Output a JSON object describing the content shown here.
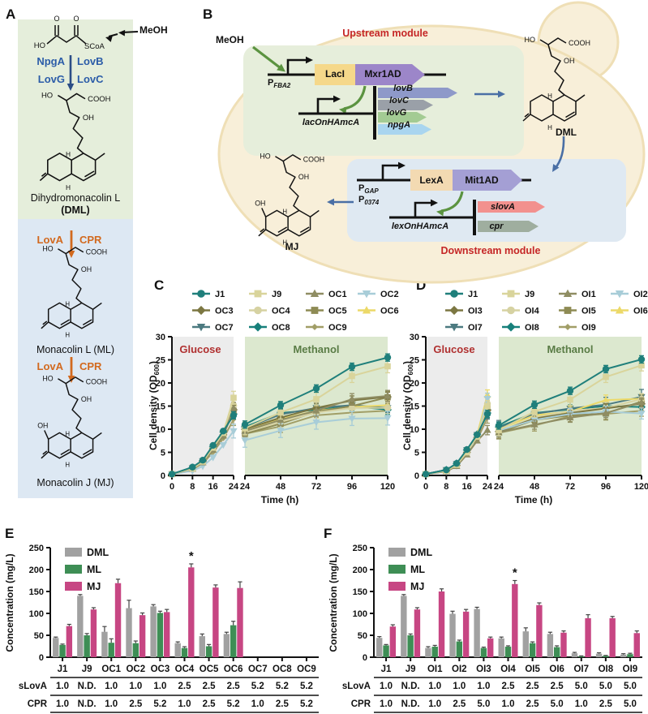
{
  "figure": {
    "letters": {
      "A": "A",
      "B": "B",
      "C": "C",
      "D": "D",
      "E": "E",
      "F": "F"
    }
  },
  "colors": {
    "greenbox": "#e5eedb",
    "bluebox": "#dde8f3",
    "blue_enzyme": "#2b5ca8",
    "blue_arrow_dark": "#2b4d86",
    "orange_enzyme": "#d2691e",
    "cell_fill": "#f8efd9",
    "cell_stroke": "#efdfb6",
    "upbox": "#e6eedb",
    "downbox": "#dfe9f2",
    "module_title": "#c52626",
    "laci": "#f5d88a",
    "mxr1ad": "#9c86c9",
    "lexa": "#f3dab2",
    "mit1ad": "#a49fd4",
    "lovB": "#8e99c9",
    "lovC": "#9aa0a8",
    "lovG": "#a3cb93",
    "npgA": "#a9d5ef",
    "slovA": "#f2918e",
    "cpr_gene": "#9fae9f",
    "green_arrow": "#5b9340",
    "blue_arrow": "#4a6fa5",
    "glucose_bg": "#ececec",
    "methanol_bg": "#dce8cf",
    "glucose_text": "#b03030",
    "methanol_text": "#5a7c46",
    "bar_dml": "#a1a1a1",
    "bar_ml": "#3e8e55",
    "bar_mj": "#c74683"
  },
  "panelA": {
    "meoh": "MeOH",
    "labels": {
      "ho": "HO",
      "o": "O",
      "scoa": "SCoA",
      "cooh": "COOH",
      "oh": "OH",
      "h": "H"
    },
    "enzymes": {
      "npga": "NpgA",
      "lovb": "LovB",
      "lovg": "LovG",
      "lovc": "LovC"
    },
    "dml_name": "Dihydromonacolin L",
    "dml_abbr": "(DML)",
    "step1": {
      "left": "LovA",
      "right": "CPR"
    },
    "ml_name": "Monacolin L (ML)",
    "step2": {
      "left": "LovA",
      "right": "CPR"
    },
    "mj_name": "Monacolin J (MJ)"
  },
  "panelB": {
    "meoh": "MeOH",
    "upstream_title": "Upstream module",
    "downstream_title": "Downstream module",
    "p_fba2": {
      "base": "P",
      "sub": "FBA2"
    },
    "laci": "LacI",
    "mxr1ad": "Mxr1AD",
    "lacOn": "lacOnHAmcA",
    "genes_up": [
      {
        "name": "lovB"
      },
      {
        "name": "lovC"
      },
      {
        "name": "lovG"
      },
      {
        "name": "npgA"
      }
    ],
    "dml": "DML",
    "p_gap": {
      "base": "P",
      "sub": "GAP"
    },
    "p_0374": {
      "base": "P",
      "sub": "0374"
    },
    "lexa": "LexA",
    "mit1ad": "Mit1AD",
    "lexOn": "lexOnHAmcA",
    "genes_down": [
      {
        "name": "slovA"
      },
      {
        "name": "cpr"
      }
    ],
    "mj": "MJ",
    "labels": {
      "ho": "HO",
      "cooh": "COOH",
      "oh": "OH",
      "h": "H"
    }
  },
  "chart_data": [
    {
      "id": "C",
      "type": "line",
      "ylabel_pre": "Cell density (OD",
      "ylabel_sub": "600",
      "ylabel_post": ")",
      "xlabel": "Time (h)",
      "ylim": [
        0,
        30
      ],
      "yticks": [
        0,
        5,
        10,
        15,
        20,
        25,
        30
      ],
      "phase1": {
        "label": "Glucose",
        "x": [
          0,
          8,
          12,
          16,
          20,
          24
        ],
        "xticks": [
          0,
          8,
          16,
          24
        ]
      },
      "phase2": {
        "label": "Methanol",
        "x": [
          24,
          48,
          72,
          96,
          120
        ],
        "xticks": [
          24,
          48,
          72,
          96,
          120
        ]
      },
      "legend_rows": [
        [
          "J1",
          "J9",
          "OC1",
          "OC2"
        ],
        [
          "OC3",
          "OC4",
          "OC5",
          "OC6"
        ],
        [
          "OC7",
          "OC8",
          "OC9"
        ]
      ],
      "series": [
        {
          "name": "J1",
          "color": "#1f7f7b",
          "marker": "circle",
          "err": 0.8,
          "g": [
            0.3,
            1.8,
            3.3,
            6.5,
            9.6,
            13.0
          ],
          "m": [
            11.0,
            15.2,
            18.8,
            23.5,
            25.5
          ]
        },
        {
          "name": "J9",
          "color": "#d9d49b",
          "marker": "square",
          "err": 1.4,
          "g": [
            0.3,
            1.5,
            3.0,
            6.0,
            9.2,
            16.8
          ],
          "m": [
            10.2,
            13.6,
            16.5,
            21.5,
            23.6
          ]
        },
        {
          "name": "OC1",
          "color": "#8f8d63",
          "marker": "triangle-up",
          "err": 1.2,
          "g": [
            0.3,
            1.4,
            2.8,
            5.5,
            8.6,
            14.6
          ],
          "m": [
            9.6,
            12.0,
            14.0,
            16.5,
            17.2
          ]
        },
        {
          "name": "OC2",
          "color": "#a8cdd8",
          "marker": "triangle-down",
          "err": 1.5,
          "g": [
            0.3,
            1.0,
            2.0,
            3.9,
            6.6,
            9.6
          ],
          "m": [
            7.6,
            9.7,
            11.5,
            12.3,
            12.4
          ]
        },
        {
          "name": "OC3",
          "color": "#7c7742",
          "marker": "diamond",
          "err": 1.0,
          "g": [
            0.3,
            1.5,
            3.0,
            5.8,
            8.8,
            14.2
          ],
          "m": [
            10.0,
            12.5,
            14.6,
            16.2,
            17.0
          ]
        },
        {
          "name": "OC4",
          "color": "#d6d2a2",
          "marker": "circle",
          "err": 1.2,
          "g": [
            0.3,
            1.4,
            2.8,
            5.6,
            8.8,
            15.2
          ],
          "m": [
            9.4,
            11.6,
            13.6,
            14.6,
            14.6
          ]
        },
        {
          "name": "OC5",
          "color": "#8e8b54",
          "marker": "square",
          "err": 1.3,
          "g": [
            0.3,
            1.5,
            2.9,
            5.6,
            8.7,
            14.0
          ],
          "m": [
            9.0,
            11.2,
            13.8,
            15.0,
            16.9
          ]
        },
        {
          "name": "OC6",
          "color": "#ecd968",
          "marker": "triangle-up",
          "err": 1.1,
          "g": [
            0.3,
            1.5,
            3.0,
            5.9,
            9.0,
            15.6
          ],
          "m": [
            10.0,
            12.2,
            14.0,
            14.8,
            15.2
          ]
        },
        {
          "name": "OC7",
          "color": "#4c7a80",
          "marker": "triangle-down",
          "err": 1.0,
          "g": [
            0.3,
            1.6,
            3.1,
            6.0,
            9.2,
            13.6
          ],
          "m": [
            10.2,
            13.2,
            14.6,
            15.2,
            14.6
          ]
        },
        {
          "name": "OC8",
          "color": "#17807b",
          "marker": "diamond",
          "err": 1.0,
          "g": [
            0.3,
            1.7,
            3.2,
            6.2,
            9.4,
            13.3
          ],
          "m": [
            10.5,
            13.5,
            14.2,
            15.0,
            14.2
          ]
        },
        {
          "name": "OC9",
          "color": "#a19e67",
          "marker": "diamond-small",
          "err": 1.3,
          "g": [
            0.3,
            1.3,
            2.6,
            5.0,
            8.0,
            12.1
          ],
          "m": [
            9.0,
            10.6,
            13.0,
            13.6,
            14.0
          ]
        }
      ]
    },
    {
      "id": "D",
      "type": "line",
      "ylabel_pre": "Cell density (OD",
      "ylabel_sub": "600",
      "ylabel_post": ")",
      "xlabel": "Time (h)",
      "ylim": [
        0,
        30
      ],
      "yticks": [
        0,
        5,
        10,
        15,
        20,
        25,
        30
      ],
      "phase1": {
        "label": "Glucose",
        "x": [
          0,
          8,
          12,
          16,
          20,
          24
        ],
        "xticks": [
          0,
          8,
          16,
          24
        ]
      },
      "phase2": {
        "label": "Methanol",
        "x": [
          24,
          48,
          72,
          96,
          120
        ],
        "xticks": [
          24,
          48,
          72,
          96,
          120
        ]
      },
      "legend_rows": [
        [
          "J1",
          "J9",
          "OI1",
          "OI2"
        ],
        [
          "OI3",
          "OI4",
          "OI5",
          "OI6"
        ],
        [
          "OI7",
          "OI8",
          "OI9"
        ]
      ],
      "series": [
        {
          "name": "J1",
          "color": "#1f7f7b",
          "marker": "circle",
          "err": 0.8,
          "g": [
            0.3,
            1.2,
            2.6,
            5.6,
            8.8,
            13.3
          ],
          "m": [
            10.8,
            15.3,
            18.3,
            23.0,
            25.1
          ]
        },
        {
          "name": "J9",
          "color": "#d9d49b",
          "marker": "square",
          "err": 1.2,
          "g": [
            0.3,
            1.0,
            2.3,
            5.0,
            8.4,
            15.0
          ],
          "m": [
            9.8,
            13.8,
            16.4,
            21.3,
            23.8
          ]
        },
        {
          "name": "OI1",
          "color": "#8f8d63",
          "marker": "triangle-up",
          "err": 1.0,
          "g": [
            0.3,
            0.9,
            2.0,
            4.5,
            7.5,
            9.8
          ],
          "m": [
            9.3,
            11.0,
            12.5,
            13.5,
            15.8
          ]
        },
        {
          "name": "OI2",
          "color": "#a8cdd8",
          "marker": "triangle-down",
          "err": 1.2,
          "g": [
            0.3,
            0.9,
            2.1,
            4.8,
            8.0,
            16.6
          ],
          "m": [
            9.7,
            12.0,
            13.3,
            13.8,
            13.4
          ]
        },
        {
          "name": "OI3",
          "color": "#7c7742",
          "marker": "diamond",
          "err": 1.0,
          "g": [
            0.3,
            1.0,
            2.2,
            5.0,
            8.2,
            14.1
          ],
          "m": [
            9.5,
            12.3,
            13.5,
            14.5,
            15.5
          ]
        },
        {
          "name": "OI4",
          "color": "#d6d2a2",
          "marker": "circle",
          "err": 1.2,
          "g": [
            0.3,
            1.0,
            2.2,
            5.0,
            8.5,
            15.5
          ],
          "m": [
            9.5,
            12.5,
            14.0,
            14.6,
            16.5
          ]
        },
        {
          "name": "OI5",
          "color": "#8e8b54",
          "marker": "square",
          "err": 1.4,
          "g": [
            0.3,
            1.0,
            2.3,
            5.2,
            8.5,
            14.5
          ],
          "m": [
            9.3,
            12.0,
            13.0,
            13.4,
            16.0
          ]
        },
        {
          "name": "OI6",
          "color": "#ecd968",
          "marker": "triangle-up",
          "err": 1.1,
          "g": [
            0.3,
            1.1,
            2.4,
            5.4,
            8.8,
            17.4
          ],
          "m": [
            10.0,
            13.0,
            13.8,
            16.3,
            16.6
          ]
        },
        {
          "name": "OI7",
          "color": "#4c7a80",
          "marker": "triangle-down",
          "err": 1.6,
          "g": [
            0.3,
            1.2,
            2.5,
            5.5,
            8.8,
            13.8
          ],
          "m": [
            10.3,
            13.3,
            14.5,
            15.3,
            17.0
          ]
        },
        {
          "name": "OI8",
          "color": "#17807b",
          "marker": "diamond",
          "err": 1.0,
          "g": [
            0.3,
            1.2,
            2.6,
            5.5,
            8.9,
            13.5
          ],
          "m": [
            10.5,
            13.5,
            14.3,
            15.0,
            14.8
          ]
        },
        {
          "name": "OI9",
          "color": "#a19e67",
          "marker": "diamond-small",
          "err": 1.2,
          "g": [
            0.3,
            0.9,
            2.0,
            4.6,
            7.7,
            12.5
          ],
          "m": [
            9.2,
            10.8,
            12.8,
            13.3,
            14.0
          ]
        }
      ]
    },
    {
      "id": "E",
      "type": "bar",
      "ylabel": "Concentration (mg/L)",
      "ylim": [
        0,
        250
      ],
      "yticks": [
        0,
        50,
        100,
        150,
        200,
        250
      ],
      "categories": [
        "J1",
        "J9",
        "OC1",
        "OC2",
        "OC3",
        "OC4",
        "OC5",
        "OC6",
        "OC7",
        "OC8",
        "OC9"
      ],
      "series": [
        {
          "name": "DML",
          "color": "#a1a1a1",
          "values": [
            44,
            140,
            58,
            112,
            116,
            32,
            48,
            53,
            0,
            0,
            0
          ],
          "errors": [
            2,
            3,
            12,
            18,
            4,
            3,
            5,
            4,
            0,
            0,
            0
          ]
        },
        {
          "name": "ML",
          "color": "#3e8e55",
          "values": [
            28,
            50,
            33,
            32,
            101,
            21,
            25,
            73,
            0,
            0,
            0
          ],
          "errors": [
            2,
            4,
            9,
            5,
            4,
            3,
            4,
            9,
            0,
            0,
            0
          ]
        },
        {
          "name": "MJ",
          "color": "#c74683",
          "values": [
            71,
            109,
            169,
            96,
            103,
            205,
            159,
            158,
            0,
            0,
            0
          ],
          "errors": [
            4,
            4,
            9,
            5,
            6,
            8,
            6,
            14,
            0,
            0,
            0
          ]
        }
      ],
      "annotation": {
        "text": "*",
        "category": "OC4",
        "series": "MJ"
      },
      "table": {
        "rows": [
          {
            "label": "sLovA",
            "values": [
              "1.0",
              "N.D.",
              "1.0",
              "1.0",
              "1.0",
              "2.5",
              "2.5",
              "2.5",
              "5.2",
              "5.2",
              "5.2"
            ]
          },
          {
            "label": "CPR",
            "values": [
              "1.0",
              "N.D.",
              "1.0",
              "2.5",
              "5.2",
              "1.0",
              "2.5",
              "5.2",
              "1.0",
              "2.5",
              "5.2"
            ]
          }
        ]
      }
    },
    {
      "id": "F",
      "type": "bar",
      "ylabel": "Concentration (mg/L)",
      "ylim": [
        0,
        250
      ],
      "yticks": [
        0,
        50,
        100,
        150,
        200,
        250
      ],
      "categories": [
        "J1",
        "J9",
        "OI1",
        "OI2",
        "OI3",
        "OI4",
        "OI5",
        "OI6",
        "OI7",
        "OI8",
        "OI9"
      ],
      "series": [
        {
          "name": "DML",
          "color": "#a1a1a1",
          "values": [
            44,
            140,
            21,
            99,
            110,
            43,
            59,
            53,
            9,
            8,
            6
          ],
          "errors": [
            3,
            3,
            3,
            6,
            4,
            3,
            8,
            4,
            2,
            2,
            2
          ]
        },
        {
          "name": "ML",
          "color": "#3e8e55",
          "values": [
            27,
            50,
            24,
            36,
            21,
            24,
            32,
            23,
            2,
            3,
            7
          ],
          "errors": [
            2,
            3,
            3,
            3,
            2,
            2,
            3,
            3,
            1,
            1,
            2
          ]
        },
        {
          "name": "MJ",
          "color": "#c74683",
          "values": [
            70,
            109,
            150,
            104,
            43,
            167,
            119,
            56,
            89,
            89,
            55
          ],
          "errors": [
            4,
            4,
            6,
            5,
            3,
            8,
            5,
            4,
            8,
            4,
            5
          ]
        }
      ],
      "annotation": {
        "text": "*",
        "category": "OI4",
        "series": "MJ"
      },
      "table": {
        "rows": [
          {
            "label": "sLovA",
            "values": [
              "1.0",
              "N.D.",
              "1.0",
              "1.0",
              "1.0",
              "2.5",
              "2.5",
              "2.5",
              "5.0",
              "5.0",
              "5.0"
            ]
          },
          {
            "label": "CPR",
            "values": [
              "1.0",
              "N.D.",
              "1.0",
              "2.5",
              "5.0",
              "1.0",
              "2.5",
              "5.0",
              "1.0",
              "2.5",
              "5.0"
            ]
          }
        ]
      }
    }
  ]
}
